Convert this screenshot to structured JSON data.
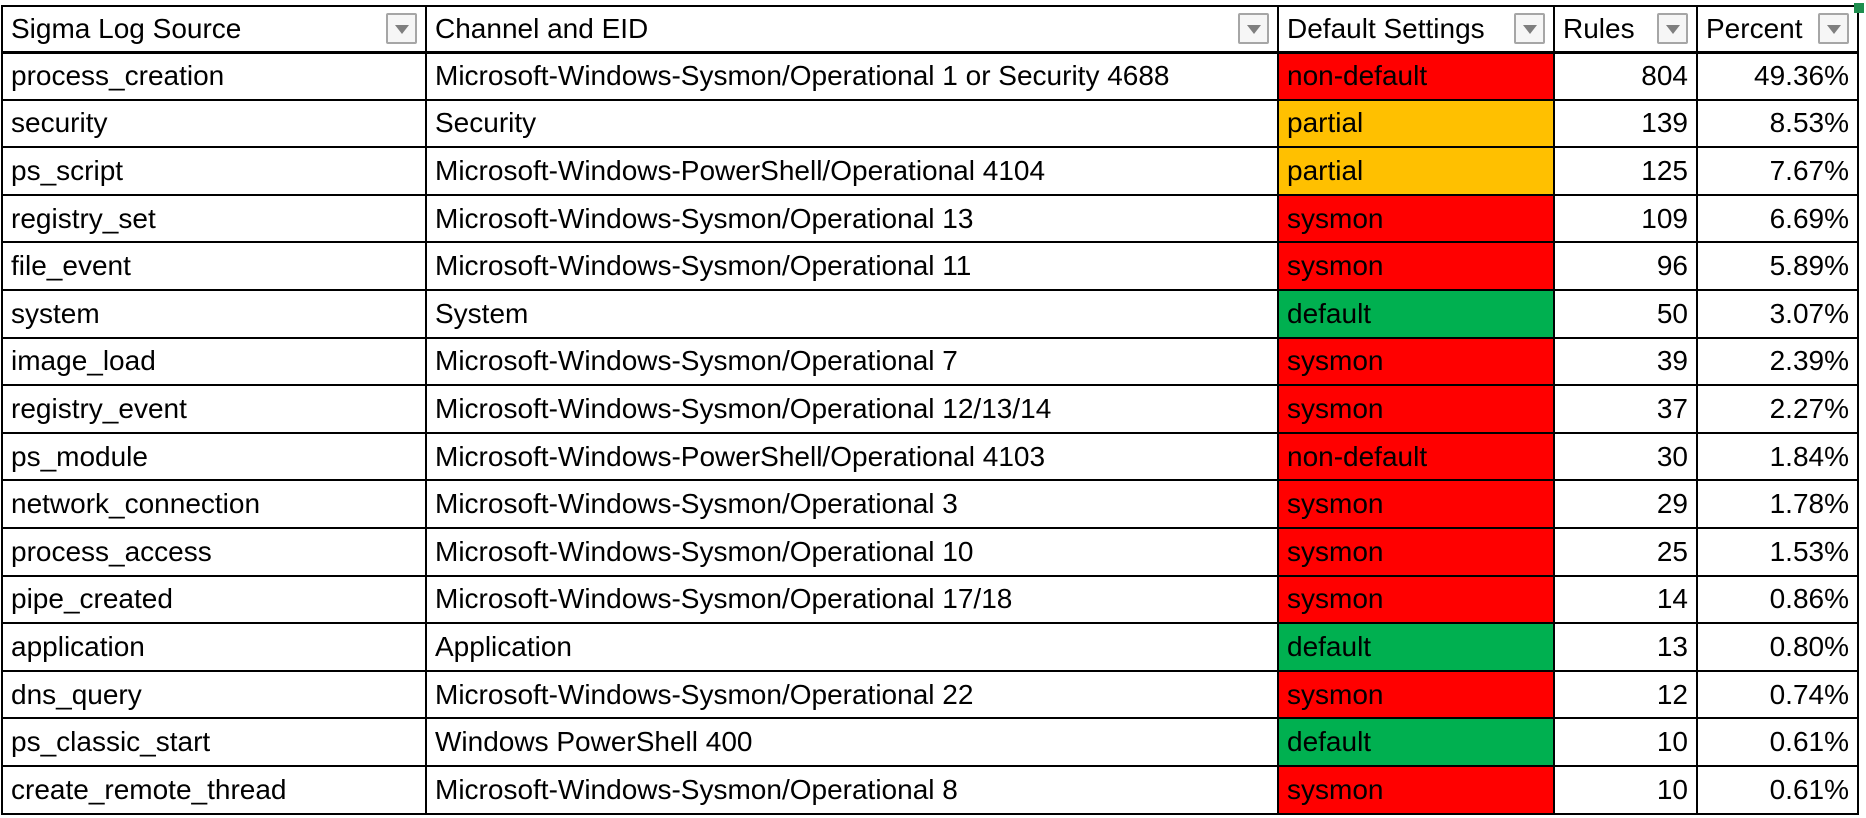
{
  "table": {
    "columns": [
      {
        "label": "Sigma Log Source",
        "filter": true
      },
      {
        "label": "Channel and EID",
        "filter": true
      },
      {
        "label": "Default Settings",
        "filter": true
      },
      {
        "label": "Rules",
        "filter": true
      },
      {
        "label": "Percent",
        "filter": true
      }
    ],
    "rows": [
      {
        "source": "process_creation",
        "channel": "Microsoft-Windows-Sysmon/Operational 1 or Security 4688",
        "setting": "non-default",
        "setting_color": "red",
        "rules": "804",
        "percent": "49.36%"
      },
      {
        "source": "security",
        "channel": "Security",
        "setting": "partial",
        "setting_color": "amber",
        "rules": "139",
        "percent": "8.53%"
      },
      {
        "source": "ps_script",
        "channel": "Microsoft-Windows-PowerShell/Operational 4104",
        "setting": "partial",
        "setting_color": "amber",
        "rules": "125",
        "percent": "7.67%"
      },
      {
        "source": "registry_set",
        "channel": "Microsoft-Windows-Sysmon/Operational 13",
        "setting": "sysmon",
        "setting_color": "red",
        "rules": "109",
        "percent": "6.69%"
      },
      {
        "source": "file_event",
        "channel": "Microsoft-Windows-Sysmon/Operational 11",
        "setting": "sysmon",
        "setting_color": "red",
        "rules": "96",
        "percent": "5.89%"
      },
      {
        "source": "system",
        "channel": "System",
        "setting": "default",
        "setting_color": "green",
        "rules": "50",
        "percent": "3.07%"
      },
      {
        "source": "image_load",
        "channel": "Microsoft-Windows-Sysmon/Operational 7",
        "setting": "sysmon",
        "setting_color": "red",
        "rules": "39",
        "percent": "2.39%"
      },
      {
        "source": "registry_event",
        "channel": "Microsoft-Windows-Sysmon/Operational 12/13/14",
        "setting": "sysmon",
        "setting_color": "red",
        "rules": "37",
        "percent": "2.27%"
      },
      {
        "source": "ps_module",
        "channel": "Microsoft-Windows-PowerShell/Operational 4103",
        "setting": "non-default",
        "setting_color": "red",
        "rules": "30",
        "percent": "1.84%"
      },
      {
        "source": "network_connection",
        "channel": "Microsoft-Windows-Sysmon/Operational 3",
        "setting": "sysmon",
        "setting_color": "red",
        "rules": "29",
        "percent": "1.78%"
      },
      {
        "source": "process_access",
        "channel": "Microsoft-Windows-Sysmon/Operational 10",
        "setting": "sysmon",
        "setting_color": "red",
        "rules": "25",
        "percent": "1.53%"
      },
      {
        "source": "pipe_created",
        "channel": "Microsoft-Windows-Sysmon/Operational 17/18",
        "setting": "sysmon",
        "setting_color": "red",
        "rules": "14",
        "percent": "0.86%"
      },
      {
        "source": "application",
        "channel": "Application",
        "setting": "default",
        "setting_color": "green",
        "rules": "13",
        "percent": "0.80%"
      },
      {
        "source": "dns_query",
        "channel": "Microsoft-Windows-Sysmon/Operational 22",
        "setting": "sysmon",
        "setting_color": "red",
        "rules": "12",
        "percent": "0.74%"
      },
      {
        "source": "ps_classic_start",
        "channel": "Windows PowerShell 400",
        "setting": "default",
        "setting_color": "green",
        "rules": "10",
        "percent": "0.61%"
      },
      {
        "source": "create_remote_thread",
        "channel": "Microsoft-Windows-Sysmon/Operational 8",
        "setting": "sysmon",
        "setting_color": "red",
        "rules": "10",
        "percent": "0.61%"
      }
    ]
  },
  "colors": {
    "red": "#ff0000",
    "amber": "#ffc000",
    "green": "#00b050"
  }
}
